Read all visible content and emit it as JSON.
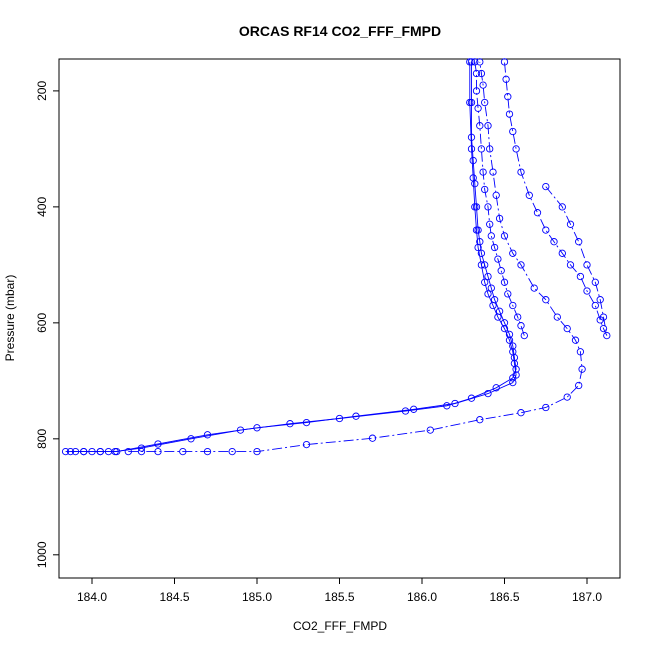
{
  "chart_data": {
    "type": "scatter",
    "title": "ORCAS RF14 CO2_FFF_FMPD",
    "xlabel": "CO2_FFF_FMPD",
    "ylabel": "Pressure (mbar)",
    "xlim": [
      183.8,
      187.2
    ],
    "ylim": [
      1040,
      145
    ],
    "y_reversed": true,
    "grid": false,
    "color": "#0000ff",
    "xticks": [
      184.0,
      184.5,
      185.0,
      185.5,
      186.0,
      186.5,
      187.0
    ],
    "xtick_labels": [
      "184.0",
      "184.5",
      "185.0",
      "185.5",
      "186.0",
      "186.5",
      "187.0"
    ],
    "yticks": [
      200,
      400,
      600,
      800,
      1000
    ],
    "ytick_labels": [
      "200",
      "400",
      "600",
      "800",
      "1000"
    ],
    "series": [
      {
        "style": "solid",
        "x": [
          183.84,
          183.9,
          183.95,
          184.0,
          184.05,
          184.1,
          184.14,
          184.3,
          184.6,
          184.9,
          185.2,
          185.5,
          185.9,
          186.15,
          186.3,
          186.45,
          186.55,
          186.57,
          186.56,
          186.55,
          186.53,
          186.5,
          186.47,
          186.44,
          186.42,
          186.4,
          186.38,
          186.36,
          186.35,
          186.34,
          186.33,
          186.32,
          186.31,
          186.3,
          186.3,
          186.3
        ],
        "y": [
          822,
          822,
          822,
          822,
          822,
          822,
          822,
          816,
          800,
          785,
          774,
          765,
          752,
          743,
          730,
          712,
          695,
          680,
          660,
          640,
          620,
          600,
          580,
          560,
          540,
          520,
          500,
          480,
          460,
          440,
          400,
          360,
          320,
          280,
          220,
          150
        ]
      },
      {
        "style": "solid",
        "x": [
          183.87,
          183.95,
          184.05,
          184.15,
          184.4,
          184.7,
          185.0,
          185.3,
          185.6,
          185.95,
          186.2,
          186.4,
          186.55,
          186.57,
          186.56,
          186.55,
          186.53,
          186.5,
          186.46,
          186.43,
          186.4,
          186.38,
          186.36,
          186.34,
          186.33,
          186.32,
          186.31,
          186.3,
          186.29,
          186.29
        ],
        "y": [
          822,
          822,
          822,
          822,
          809,
          793,
          781,
          772,
          761,
          749,
          739,
          722,
          703,
          690,
          670,
          650,
          630,
          610,
          590,
          570,
          550,
          530,
          500,
          470,
          440,
          400,
          350,
          300,
          220,
          150
        ]
      },
      {
        "style": "dashdot",
        "x": [
          184.22,
          184.3,
          184.4,
          184.55,
          184.7,
          184.85,
          185.0,
          185.3,
          185.7,
          186.05,
          186.35,
          186.6,
          186.75,
          186.88,
          186.95,
          186.97,
          186.96,
          186.93,
          186.88,
          186.82,
          186.75,
          186.68,
          186.6,
          186.55,
          186.5,
          186.47,
          186.45,
          186.43,
          186.41,
          186.4,
          186.38,
          186.37,
          186.36,
          186.35
        ],
        "y": [
          822,
          822,
          822,
          822,
          822,
          822,
          822,
          810,
          799,
          785,
          767,
          755,
          746,
          728,
          708,
          680,
          650,
          630,
          610,
          590,
          560,
          540,
          500,
          480,
          450,
          420,
          380,
          340,
          300,
          260,
          220,
          190,
          170,
          150
        ]
      },
      {
        "style": "dashdot",
        "x": [
          186.75,
          186.85,
          186.9,
          186.95,
          187.0,
          187.05,
          187.08,
          187.1,
          187.12,
          187.1,
          187.08,
          187.05,
          187.0,
          186.96,
          186.9,
          186.85,
          186.8,
          186.75,
          186.7,
          186.65,
          186.6,
          186.57,
          186.55,
          186.53,
          186.52,
          186.51,
          186.5
        ],
        "y": [
          365,
          400,
          430,
          460,
          500,
          530,
          560,
          590,
          622,
          610,
          595,
          570,
          545,
          520,
          500,
          480,
          460,
          440,
          410,
          380,
          340,
          300,
          270,
          240,
          210,
          180,
          150
        ]
      },
      {
        "style": "dashdot",
        "x": [
          186.62,
          186.6,
          186.58,
          186.55,
          186.52,
          186.5,
          186.48,
          186.46,
          186.44,
          186.42,
          186.41,
          186.4,
          186.38,
          186.37,
          186.36,
          186.35,
          186.34,
          186.33,
          186.33,
          186.32
        ],
        "y": [
          622,
          605,
          590,
          570,
          550,
          530,
          510,
          490,
          470,
          450,
          430,
          400,
          370,
          340,
          300,
          260,
          230,
          200,
          170,
          150
        ]
      }
    ]
  }
}
